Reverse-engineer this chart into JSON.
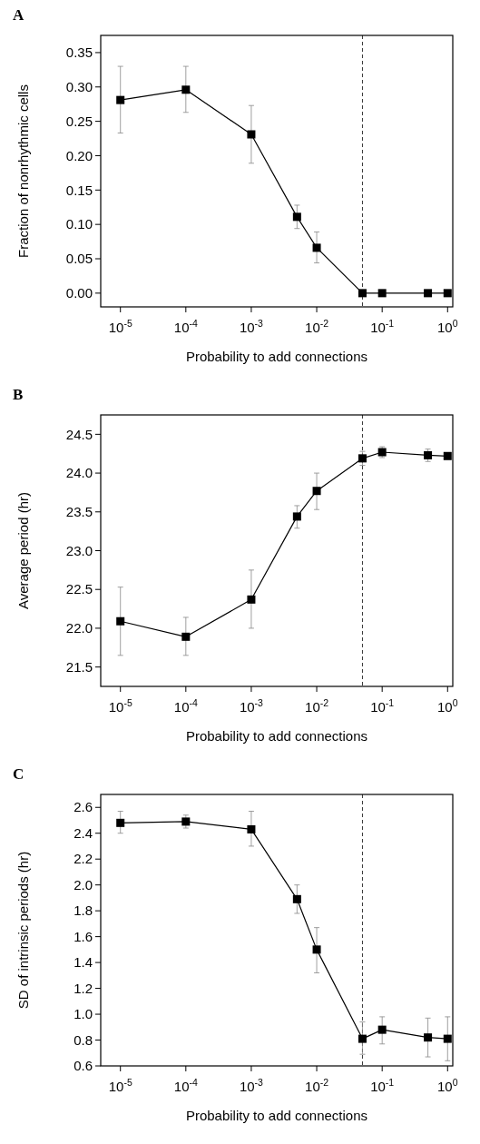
{
  "chart_data": [
    {
      "type": "line",
      "title": "A",
      "xlabel": "Probability to add connections",
      "ylabel": "Fraction of nonrhythmic cells",
      "log": "x",
      "marker": "square",
      "line_style": "solid",
      "grid": false,
      "xlim": [
        5e-06,
        1.2
      ],
      "xticks": [
        {
          "value": 1e-05,
          "label": "10$^{-5}$"
        },
        {
          "value": 0.0001,
          "label": "10$^{-4}$"
        },
        {
          "value": 0.001,
          "label": "10$^{-3}$"
        },
        {
          "value": 0.01,
          "label": "10$^{-2}$"
        },
        {
          "value": 0.1,
          "label": "10$^{-1}$"
        },
        {
          "value": 1,
          "label": "10$^{0}$"
        }
      ],
      "ylim": [
        -0.02,
        0.375
      ],
      "yticks": [
        {
          "value": 0,
          "label": "0.00"
        },
        {
          "value": 0.05,
          "label": "0.05"
        },
        {
          "value": 0.1,
          "label": "0.10"
        },
        {
          "value": 0.15,
          "label": "0.15"
        },
        {
          "value": 0.2,
          "label": "0.20"
        },
        {
          "value": 0.25,
          "label": "0.25"
        },
        {
          "value": 0.3,
          "label": "0.30"
        },
        {
          "value": 0.35,
          "label": "0.35"
        }
      ],
      "ref_lines": [
        {
          "axis": "x",
          "value": 0.05,
          "line_style": "dashed",
          "color": "#000000"
        }
      ],
      "x": [
        1e-05,
        0.0001,
        0.001,
        0.005,
        0.01,
        0.05,
        0.1,
        0.5,
        1
      ],
      "series": [
        {
          "color": "#000000",
          "values": [
            0.281,
            0.296,
            0.231,
            0.111,
            0.066,
            0,
            0,
            0,
            0
          ],
          "errors": [
            [
              0.233,
              0.33
            ],
            [
              0.263,
              0.33
            ],
            [
              0.189,
              0.273
            ],
            [
              0.094,
              0.128
            ],
            [
              0.044,
              0.089
            ],
            null,
            null,
            null,
            null
          ]
        }
      ]
    },
    {
      "type": "line",
      "title": "B",
      "xlabel": "Probability to add connections",
      "ylabel": "Average period (hr)",
      "log": "x",
      "marker": "square",
      "line_style": "solid",
      "grid": false,
      "xlim": [
        5e-06,
        1.2
      ],
      "xticks": [
        {
          "value": 1e-05,
          "label": "10$^{-5}$"
        },
        {
          "value": 0.0001,
          "label": "10$^{-4}$"
        },
        {
          "value": 0.001,
          "label": "10$^{-3}$"
        },
        {
          "value": 0.01,
          "label": "10$^{-2}$"
        },
        {
          "value": 0.1,
          "label": "10$^{-1}$"
        },
        {
          "value": 1,
          "label": "10$^{0}$"
        }
      ],
      "ylim": [
        21.25,
        24.75
      ],
      "yticks": [
        {
          "value": 21.5,
          "label": "21.5"
        },
        {
          "value": 22,
          "label": "22.0"
        },
        {
          "value": 22.5,
          "label": "22.5"
        },
        {
          "value": 23,
          "label": "23.0"
        },
        {
          "value": 23.5,
          "label": "23.5"
        },
        {
          "value": 24,
          "label": "24.0"
        },
        {
          "value": 24.5,
          "label": "24.5"
        }
      ],
      "ref_lines": [
        {
          "axis": "x",
          "value": 0.05,
          "line_style": "dashed",
          "color": "#000000"
        }
      ],
      "x": [
        1e-05,
        0.0001,
        0.001,
        0.005,
        0.01,
        0.05,
        0.1,
        0.5,
        1
      ],
      "series": [
        {
          "color": "#000000",
          "values": [
            22.09,
            21.89,
            22.37,
            23.44,
            23.77,
            24.19,
            24.27,
            24.23,
            24.22
          ],
          "errors": [
            [
              21.65,
              22.53
            ],
            [
              21.65,
              22.14
            ],
            [
              22.0,
              22.75
            ],
            [
              23.29,
              23.58
            ],
            [
              23.53,
              24.0
            ],
            [
              24.1,
              24.28
            ],
            [
              24.2,
              24.34
            ],
            [
              24.15,
              24.31
            ],
            null
          ]
        }
      ]
    },
    {
      "type": "line",
      "title": "C",
      "xlabel": "Probability to add connections",
      "ylabel": "SD of intrinsic periods (hr)",
      "log": "x",
      "marker": "square",
      "line_style": "solid",
      "grid": false,
      "xlim": [
        5e-06,
        1.2
      ],
      "xticks": [
        {
          "value": 1e-05,
          "label": "10$^{-5}$"
        },
        {
          "value": 0.0001,
          "label": "10$^{-4}$"
        },
        {
          "value": 0.001,
          "label": "10$^{-3}$"
        },
        {
          "value": 0.01,
          "label": "10$^{-2}$"
        },
        {
          "value": 0.1,
          "label": "10$^{-1}$"
        },
        {
          "value": 1,
          "label": "10$^{0}$"
        }
      ],
      "ylim": [
        0.6,
        2.7
      ],
      "yticks": [
        {
          "value": 0.6,
          "label": "0.6"
        },
        {
          "value": 0.8,
          "label": "0.8"
        },
        {
          "value": 1,
          "label": "1.0"
        },
        {
          "value": 1.2,
          "label": "1.2"
        },
        {
          "value": 1.4,
          "label": "1.4"
        },
        {
          "value": 1.6,
          "label": "1.6"
        },
        {
          "value": 1.8,
          "label": "1.8"
        },
        {
          "value": 2,
          "label": "2.0"
        },
        {
          "value": 2.2,
          "label": "2.2"
        },
        {
          "value": 2.4,
          "label": "2.4"
        },
        {
          "value": 2.6,
          "label": "2.6"
        }
      ],
      "ref_lines": [
        {
          "axis": "x",
          "value": 0.05,
          "line_style": "dashed",
          "color": "#000000"
        }
      ],
      "x": [
        1e-05,
        0.0001,
        0.001,
        0.005,
        0.01,
        0.05,
        0.1,
        0.5,
        1
      ],
      "series": [
        {
          "color": "#000000",
          "values": [
            2.48,
            2.49,
            2.43,
            1.89,
            1.5,
            0.81,
            0.88,
            0.82,
            0.81
          ],
          "errors": [
            [
              2.4,
              2.57
            ],
            [
              2.44,
              2.54
            ],
            [
              2.3,
              2.57
            ],
            [
              1.78,
              2.0
            ],
            [
              1.32,
              1.67
            ],
            [
              0.69,
              0.94
            ],
            [
              0.77,
              0.98
            ],
            [
              0.67,
              0.97
            ],
            [
              0.64,
              0.98
            ]
          ]
        }
      ]
    }
  ]
}
